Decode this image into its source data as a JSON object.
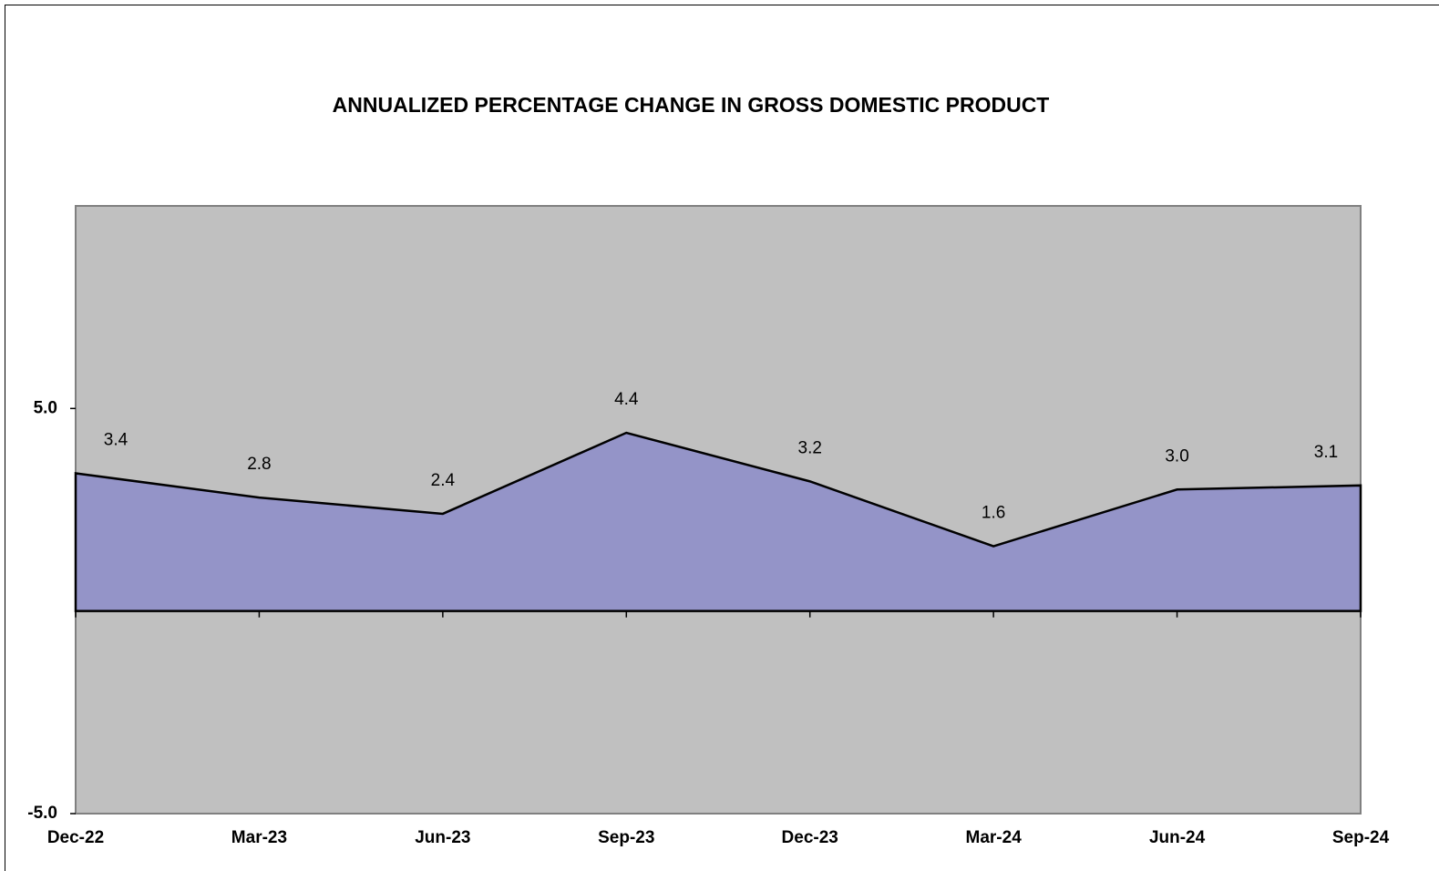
{
  "chart_data": {
    "type": "area",
    "title": "ANNUALIZED PERCENTAGE CHANGE IN GROSS DOMESTIC PRODUCT",
    "categories": [
      "Dec-22",
      "Mar-23",
      "Jun-23",
      "Sep-23",
      "Dec-23",
      "Mar-24",
      "Jun-24",
      "Sep-24"
    ],
    "series": [
      {
        "color": "#9494c8",
        "values": [
          3.4,
          2.8,
          2.4,
          4.4,
          3.2,
          1.6,
          3.0,
          3.1
        ],
        "value_labels": [
          "3.4",
          "2.8",
          "2.4",
          "4.4",
          "3.2",
          "1.6",
          "3.0",
          "3.1"
        ]
      }
    ],
    "ylim": [
      -5,
      10
    ],
    "yticks": [
      {
        "value": -5,
        "label": "-5.0"
      },
      {
        "value": 5,
        "label": "5.0"
      }
    ],
    "plot_background": "#c0c0c0"
  }
}
